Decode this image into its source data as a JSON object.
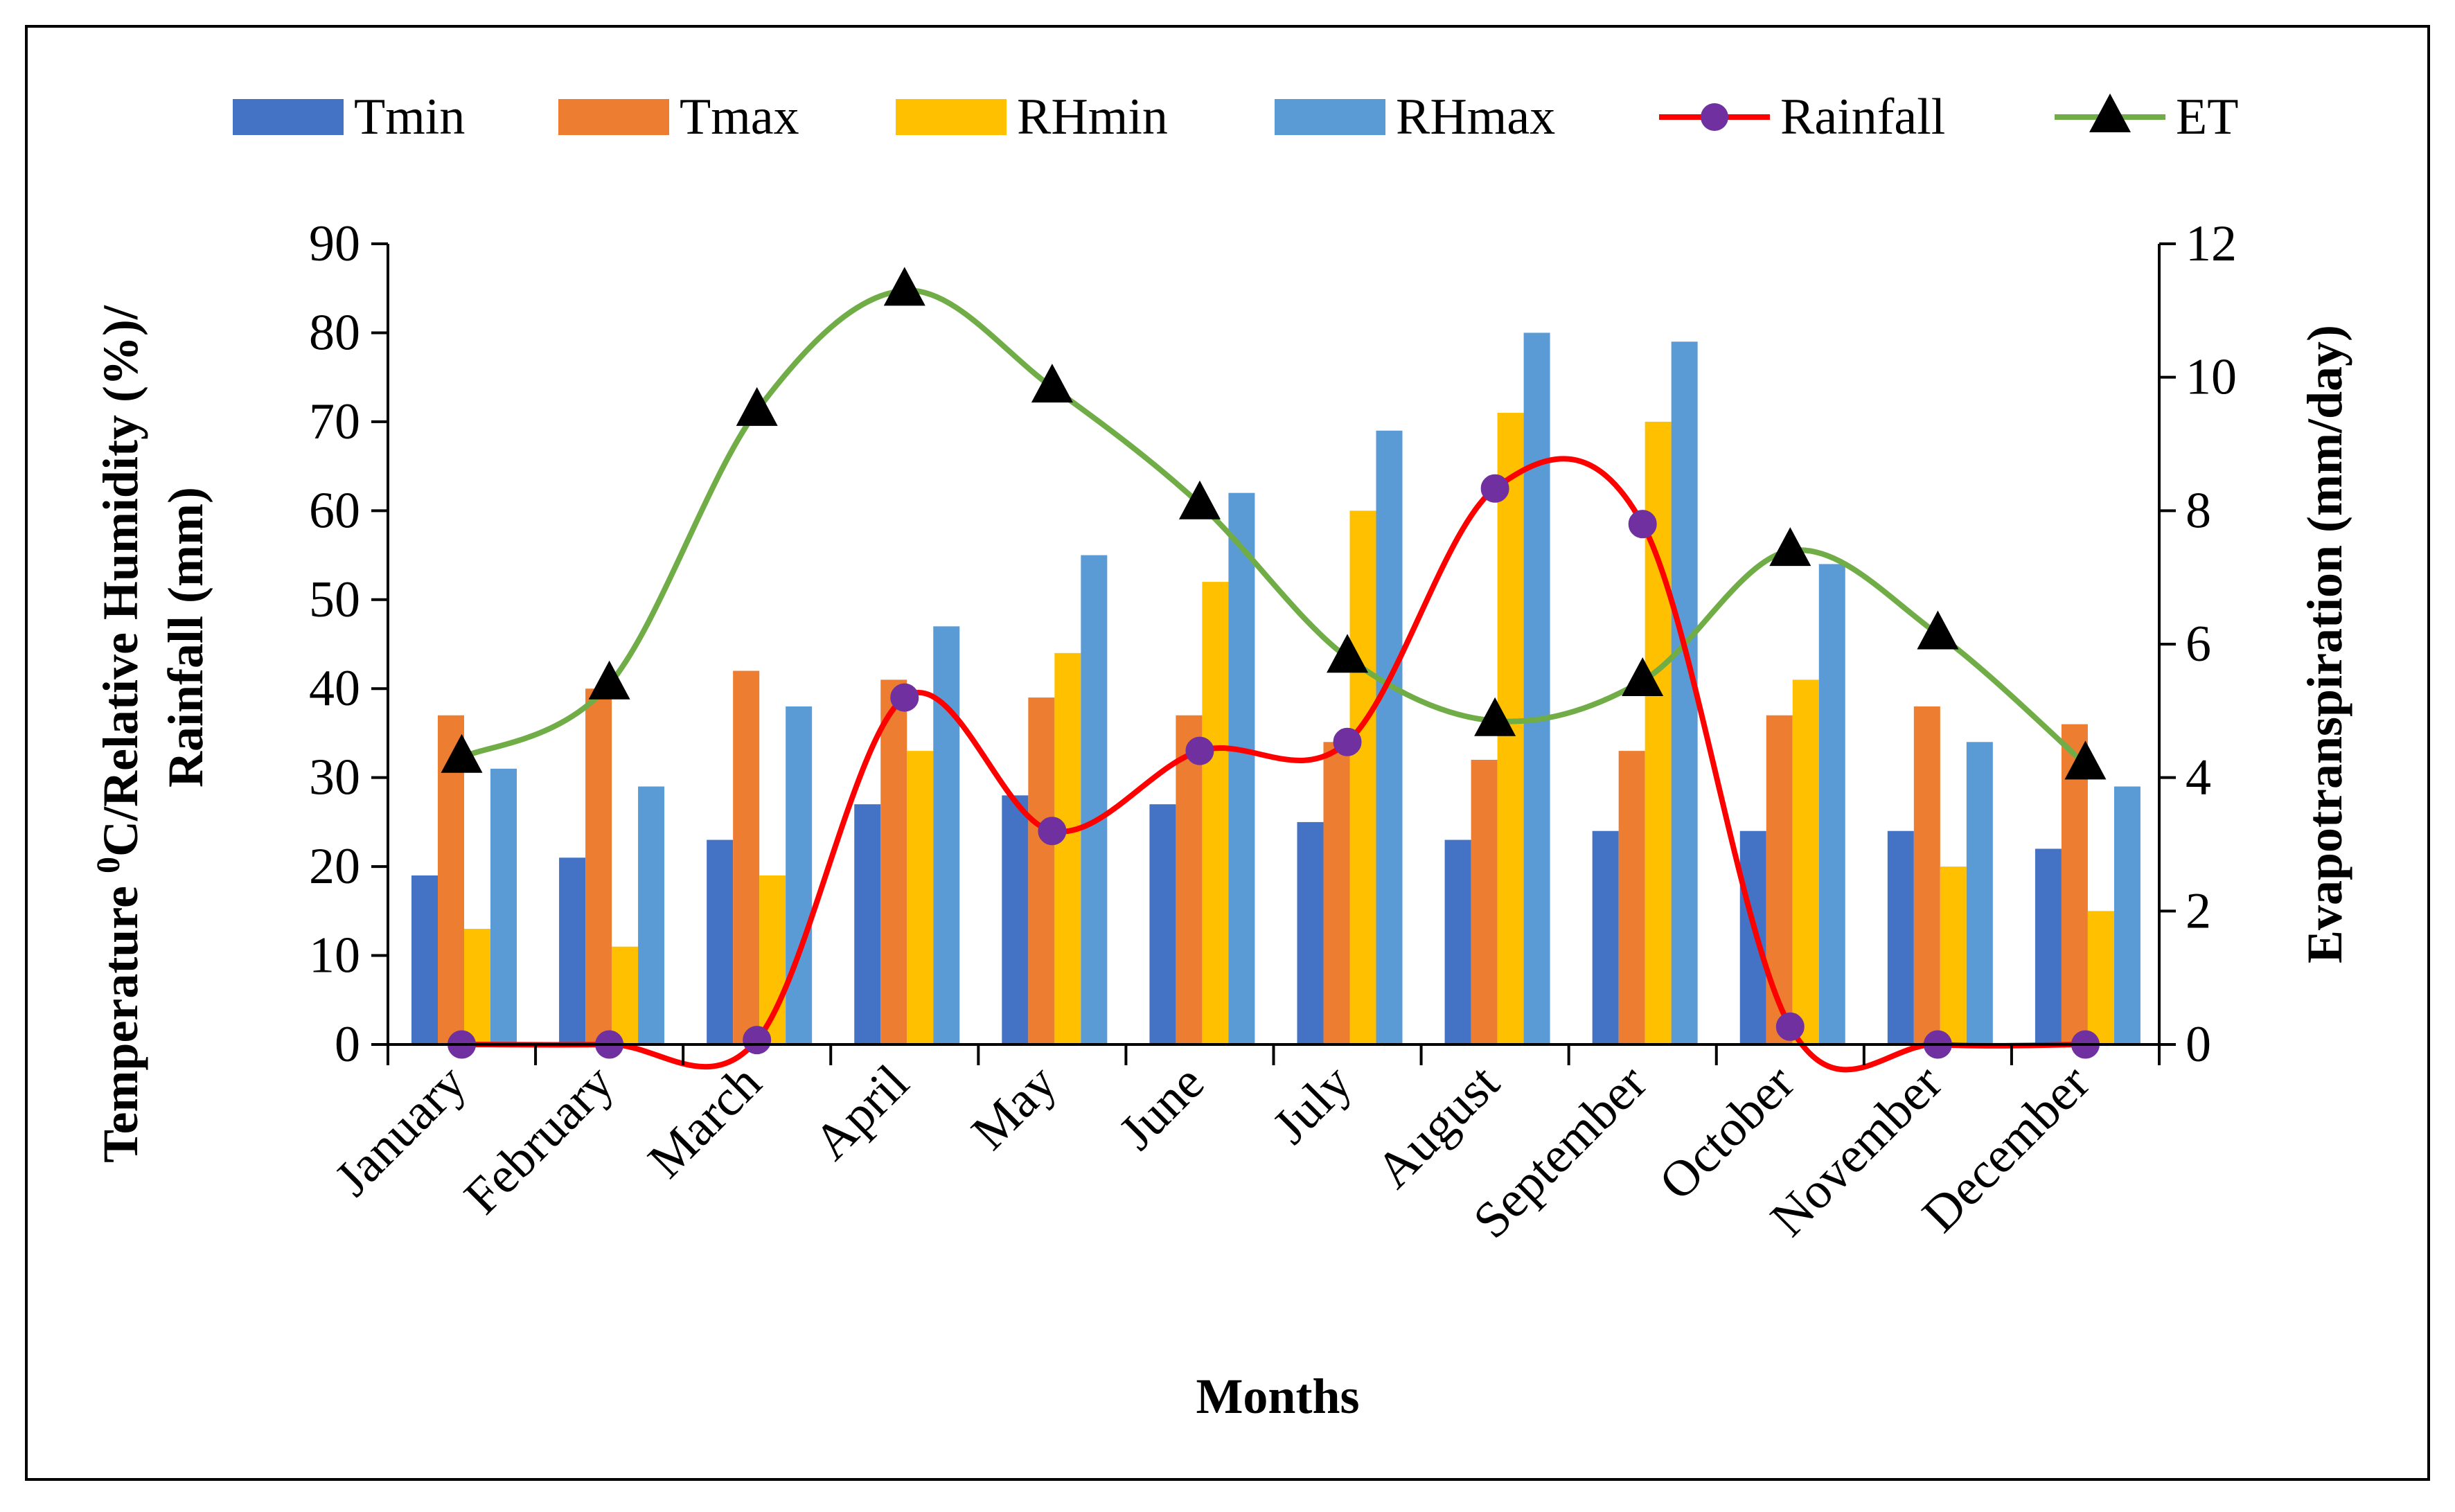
{
  "chart_data": {
    "type": "bar",
    "categories": [
      "January",
      "February",
      "March",
      "April",
      "May",
      "June",
      "July",
      "August",
      "September",
      "October",
      "November",
      "December"
    ],
    "series": [
      {
        "name": "Tmin",
        "kind": "bar",
        "axis": "left",
        "color": "#4472C4",
        "values": [
          19,
          21,
          23,
          27,
          28,
          27,
          25,
          23,
          24,
          24,
          24,
          22
        ]
      },
      {
        "name": "Tmax",
        "kind": "bar",
        "axis": "left",
        "color": "#ED7D31",
        "values": [
          37,
          40,
          42,
          41,
          39,
          37,
          34,
          32,
          33,
          37,
          38,
          36
        ]
      },
      {
        "name": "RHmin",
        "kind": "bar",
        "axis": "left",
        "color": "#FFC000",
        "values": [
          13,
          11,
          19,
          33,
          44,
          52,
          60,
          71,
          70,
          41,
          20,
          15
        ]
      },
      {
        "name": "RHmax",
        "kind": "bar",
        "axis": "left",
        "color": "#5B9BD5",
        "values": [
          31,
          29,
          38,
          47,
          55,
          62,
          69,
          80,
          79,
          54,
          34,
          29
        ]
      },
      {
        "name": "Rainfall",
        "kind": "line",
        "axis": "left",
        "color": "#FF0000",
        "marker": "circle",
        "marker_color": "#7030A0",
        "values": [
          0,
          0,
          0.5,
          39,
          24,
          33,
          34,
          62.5,
          58.5,
          2,
          0,
          0
        ]
      },
      {
        "name": "ET",
        "kind": "line",
        "axis": "right",
        "color": "#70AD47",
        "marker": "triangle",
        "marker_color": "#000000",
        "values": [
          4.3,
          5.4,
          9.5,
          11.3,
          9.85,
          8.1,
          5.8,
          4.85,
          5.45,
          7.4,
          6.15,
          4.2
        ]
      }
    ],
    "title": "",
    "xlabel": "Months",
    "ylabel": "Temperature ⁰C/Relative Humidity (%)/ Rainfall (mm)",
    "ylabel_lines": [
      "Temperature ⁰C/Relative Humidity (%)/",
      "Rainfall (mm)"
    ],
    "ylabel_superscript": "0",
    "y2label": "Evapotranspiration (mm/day)",
    "ylim": [
      0,
      90
    ],
    "yticks": [
      0,
      10,
      20,
      30,
      40,
      50,
      60,
      70,
      80,
      90
    ],
    "y2lim": [
      0,
      12
    ],
    "y2ticks": [
      0,
      2,
      4,
      6,
      8,
      10,
      12
    ],
    "legend_position": "top",
    "grid": false
  }
}
